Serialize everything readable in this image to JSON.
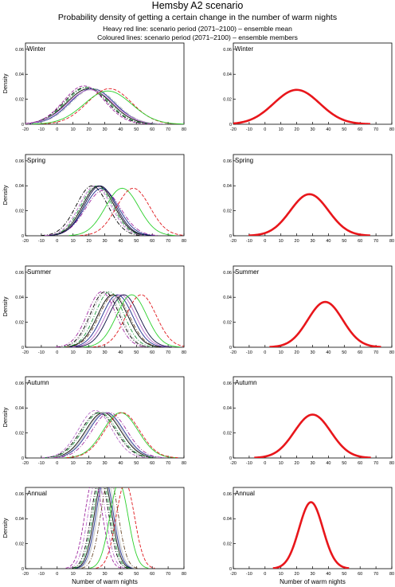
{
  "header": {
    "title": "Hemsby A2 scenario",
    "subtitle": "Probability density of getting a certain change in the number of warm nights",
    "note_mean": "Heavy red line: scenario period (2071–2100) – ensemble mean",
    "note_members": "Coloured lines: scenario period (2071–2100) – ensemble members"
  },
  "axes": {
    "xlabel": "Number of warm nights",
    "ylabel": "Density",
    "xlim": [
      -20,
      80
    ],
    "ylim": [
      0,
      0.065
    ],
    "xticks": [
      "-20",
      "-10",
      "0",
      "10",
      "20",
      "30",
      "40",
      "50",
      "60",
      "70",
      "80"
    ],
    "yticks": [
      "0",
      "0.02",
      "0.04",
      "0.06"
    ]
  },
  "colors": {
    "mean": "#e8161b",
    "members": [
      "#000000",
      "#1b2a8c",
      "#1a9a3a",
      "#e0161b",
      "#b86cc8",
      "#2ad02a",
      "#c0c0c0",
      "#6a4a2a",
      "#9f2aa0",
      "#0a0a40"
    ]
  },
  "chart_data": [
    {
      "type": "line",
      "panel": "members",
      "label": "Winter",
      "xlim": [
        -20,
        80
      ],
      "ylim": [
        0,
        0.065
      ],
      "series": [
        {
          "mean": 18,
          "sd": 13.5,
          "style": "dashdot",
          "color": "#000000"
        },
        {
          "mean": 20,
          "sd": 14,
          "style": "solid",
          "color": "#000000"
        },
        {
          "mean": 22,
          "sd": 14,
          "style": "solid",
          "color": "#1b2a8c"
        },
        {
          "mean": 19,
          "sd": 13.5,
          "style": "dashdot",
          "color": "#1a9a3a"
        },
        {
          "mean": 21,
          "sd": 14.5,
          "style": "solid",
          "color": "#b86cc8"
        },
        {
          "mean": 23,
          "sd": 14,
          "style": "dashdot",
          "color": "#c0c0c0"
        },
        {
          "mean": 17,
          "sd": 13,
          "style": "dashed",
          "color": "#9f2aa0"
        },
        {
          "mean": 33,
          "sd": 14,
          "style": "dashed",
          "color": "#e0161b"
        },
        {
          "mean": 32,
          "sd": 15,
          "style": "solid",
          "color": "#2ad02a"
        }
      ]
    },
    {
      "type": "line",
      "panel": "mean",
      "label": "Winter",
      "xlim": [
        -20,
        80
      ],
      "ylim": [
        0,
        0.065
      ],
      "series": [
        {
          "mean": 20,
          "sd": 14.5,
          "style": "mean",
          "color": "#e8161b"
        }
      ]
    },
    {
      "type": "line",
      "panel": "members",
      "label": "Spring",
      "xlim": [
        -20,
        80
      ],
      "ylim": [
        0,
        0.065
      ],
      "series": [
        {
          "mean": 22,
          "sd": 10,
          "style": "dashdot",
          "color": "#000000"
        },
        {
          "mean": 26,
          "sd": 10,
          "style": "solid",
          "color": "#000000"
        },
        {
          "mean": 28,
          "sd": 10.5,
          "style": "solid",
          "color": "#1b2a8c"
        },
        {
          "mean": 25,
          "sd": 10,
          "style": "dashdot",
          "color": "#1a9a3a"
        },
        {
          "mean": 24,
          "sd": 10,
          "style": "dashed",
          "color": "#b86cc8"
        },
        {
          "mean": 29,
          "sd": 11,
          "style": "dashdot",
          "color": "#9f2aa0"
        },
        {
          "mean": 27,
          "sd": 10,
          "style": "solid",
          "color": "#0a0a40"
        },
        {
          "mean": 41,
          "sd": 10.5,
          "style": "solid",
          "color": "#2ad02a"
        },
        {
          "mean": 48,
          "sd": 10.5,
          "style": "dashed",
          "color": "#e0161b"
        }
      ]
    },
    {
      "type": "line",
      "panel": "mean",
      "label": "Spring",
      "xlim": [
        -20,
        80
      ],
      "ylim": [
        0,
        0.065
      ],
      "series": [
        {
          "mean": 28,
          "sd": 12,
          "style": "mean",
          "color": "#e8161b"
        }
      ]
    },
    {
      "type": "line",
      "panel": "members",
      "label": "Summer",
      "xlim": [
        -20,
        80
      ],
      "ylim": [
        0,
        0.065
      ],
      "series": [
        {
          "mean": 30,
          "sd": 9,
          "style": "dashdot",
          "color": "#000000"
        },
        {
          "mean": 35,
          "sd": 9.5,
          "style": "solid",
          "color": "#000000"
        },
        {
          "mean": 38,
          "sd": 9.5,
          "style": "solid",
          "color": "#1b2a8c"
        },
        {
          "mean": 33,
          "sd": 9,
          "style": "dashdot",
          "color": "#1a9a3a"
        },
        {
          "mean": 40,
          "sd": 9.5,
          "style": "solid",
          "color": "#b86cc8"
        },
        {
          "mean": 31,
          "sd": 9,
          "style": "dashed",
          "color": "#c0c0c0"
        },
        {
          "mean": 36,
          "sd": 9.5,
          "style": "dashdot",
          "color": "#6a4a2a"
        },
        {
          "mean": 28,
          "sd": 9,
          "style": "dashdot",
          "color": "#9f2aa0"
        },
        {
          "mean": 42,
          "sd": 9.5,
          "style": "solid",
          "color": "#0a0a40"
        },
        {
          "mean": 47,
          "sd": 9.5,
          "style": "solid",
          "color": "#2ad02a"
        },
        {
          "mean": 53,
          "sd": 9.5,
          "style": "dashed",
          "color": "#e0161b"
        }
      ]
    },
    {
      "type": "line",
      "panel": "mean",
      "label": "Summer",
      "xlim": [
        -20,
        80
      ],
      "ylim": [
        0,
        0.065
      ],
      "series": [
        {
          "mean": 38,
          "sd": 11,
          "style": "mean",
          "color": "#e8161b"
        }
      ]
    },
    {
      "type": "line",
      "panel": "members",
      "label": "Autumn",
      "xlim": [
        -20,
        80
      ],
      "ylim": [
        0,
        0.065
      ],
      "series": [
        {
          "mean": 26,
          "sd": 11,
          "style": "dashdot",
          "color": "#000000"
        },
        {
          "mean": 29,
          "sd": 11,
          "style": "solid",
          "color": "#000000"
        },
        {
          "mean": 31,
          "sd": 11,
          "style": "solid",
          "color": "#1b2a8c"
        },
        {
          "mean": 27,
          "sd": 11,
          "style": "dashdot",
          "color": "#1a9a3a"
        },
        {
          "mean": 30,
          "sd": 11,
          "style": "solid",
          "color": "#c0c0c0"
        },
        {
          "mean": 24,
          "sd": 10.5,
          "style": "dashed",
          "color": "#b86cc8"
        },
        {
          "mean": 33,
          "sd": 11,
          "style": "dashdot",
          "color": "#9f2aa0"
        },
        {
          "mean": 40,
          "sd": 11,
          "style": "solid",
          "color": "#2ad02a"
        },
        {
          "mean": 41,
          "sd": 11,
          "style": "dashed",
          "color": "#e0161b"
        }
      ]
    },
    {
      "type": "line",
      "panel": "mean",
      "label": "Autumn",
      "xlim": [
        -20,
        80
      ],
      "ylim": [
        0,
        0.065
      ],
      "series": [
        {
          "mean": 30,
          "sd": 11.5,
          "style": "mean",
          "color": "#e8161b"
        }
      ]
    },
    {
      "type": "line",
      "panel": "members",
      "label": "Annual",
      "xlim": [
        -20,
        80
      ],
      "ylim": [
        0,
        0.065
      ],
      "series": [
        {
          "mean": 27,
          "sd": 5.5,
          "style": "dashdot",
          "color": "#000000"
        },
        {
          "mean": 29,
          "sd": 5.5,
          "style": "solid",
          "color": "#000000"
        },
        {
          "mean": 30,
          "sd": 5.5,
          "style": "solid",
          "color": "#1b2a8c"
        },
        {
          "mean": 28,
          "sd": 5.5,
          "style": "dashdot",
          "color": "#1a9a3a"
        },
        {
          "mean": 31,
          "sd": 5.5,
          "style": "solid",
          "color": "#c0c0c0"
        },
        {
          "mean": 25,
          "sd": 5.5,
          "style": "dashdot",
          "color": "#b86cc8"
        },
        {
          "mean": 23,
          "sd": 5.5,
          "style": "dashed",
          "color": "#9f2aa0"
        },
        {
          "mean": 33,
          "sd": 5.5,
          "style": "dashdot",
          "color": "#6a4a2a"
        },
        {
          "mean": 39,
          "sd": 5.8,
          "style": "solid",
          "color": "#2ad02a"
        },
        {
          "mean": 43,
          "sd": 5.8,
          "style": "dashed",
          "color": "#e0161b"
        }
      ]
    },
    {
      "type": "line",
      "panel": "mean",
      "label": "Annual",
      "xlim": [
        -20,
        80
      ],
      "ylim": [
        0,
        0.065
      ],
      "series": [
        {
          "mean": 29,
          "sd": 7.5,
          "style": "mean",
          "color": "#e8161b"
        }
      ]
    }
  ]
}
